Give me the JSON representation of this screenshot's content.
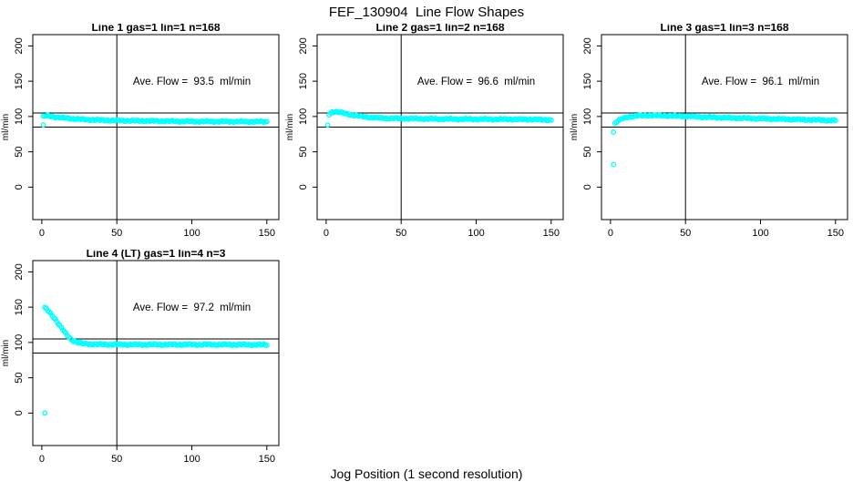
{
  "figure": {
    "title": "FEF_130904  Line Flow Shapes",
    "xlabel": "Jog Position (1 second resolution)",
    "ylabel": "ml/min",
    "background": "#FFFFFF",
    "point_color": "#00FFFF",
    "line_color": "#000000"
  },
  "axes": {
    "xlim": [
      -6,
      158
    ],
    "ylim": [
      -46,
      216
    ],
    "xticks": [
      0,
      50,
      100,
      150
    ],
    "yticks": [
      0,
      50,
      100,
      150,
      200
    ],
    "ref_line_x": 50,
    "ref_lines_y": [
      105,
      85
    ],
    "grid": false
  },
  "chart_data": [
    {
      "type": "scatter",
      "title": "Line 1 gas=1 lin=1 n=168",
      "annotation": "Ave. Flow =  93.5  ml/min",
      "ave_flow_ml_min": 93.5,
      "n": 168,
      "annotation_pos": [
        100,
        150
      ],
      "curve_anchors": [
        [
          1,
          100
        ],
        [
          2,
          100.5
        ],
        [
          4,
          101
        ],
        [
          7,
          100
        ],
        [
          12,
          98.5
        ],
        [
          20,
          97
        ],
        [
          30,
          95.5
        ],
        [
          45,
          94.5
        ],
        [
          60,
          94
        ],
        [
          80,
          93.5
        ],
        [
          100,
          93
        ],
        [
          125,
          92.8
        ],
        [
          150,
          92.5
        ]
      ],
      "outliers": [
        [
          1,
          88
        ]
      ]
    },
    {
      "type": "scatter",
      "title": "Line 2 gas=1 lin=2 n=168",
      "annotation": "Ave. Flow =  96.6  ml/min",
      "ave_flow_ml_min": 96.6,
      "n": 168,
      "annotation_pos": [
        100,
        150
      ],
      "curve_anchors": [
        [
          2,
          103
        ],
        [
          4,
          106.5
        ],
        [
          6,
          107
        ],
        [
          9,
          106
        ],
        [
          13,
          104
        ],
        [
          18,
          102
        ],
        [
          24,
          100
        ],
        [
          30,
          98.5
        ],
        [
          40,
          97.5
        ],
        [
          55,
          97
        ],
        [
          75,
          96.5
        ],
        [
          100,
          96.2
        ],
        [
          125,
          96
        ],
        [
          140,
          95.8
        ],
        [
          150,
          95
        ]
      ],
      "outliers": [
        [
          1,
          88
        ]
      ]
    },
    {
      "type": "scatter",
      "title": "Line 3 gas=1 lin=3 n=168",
      "annotation": "Ave. Flow =  96.1  ml/min",
      "ave_flow_ml_min": 96.1,
      "n": 168,
      "annotation_pos": [
        100,
        150
      ],
      "curve_anchors": [
        [
          3,
          90
        ],
        [
          5,
          94
        ],
        [
          8,
          97
        ],
        [
          12,
          99.5
        ],
        [
          18,
          101
        ],
        [
          25,
          101.5
        ],
        [
          35,
          101.2
        ],
        [
          50,
          100.3
        ],
        [
          65,
          99
        ],
        [
          80,
          98
        ],
        [
          100,
          97
        ],
        [
          120,
          96
        ],
        [
          140,
          95
        ],
        [
          150,
          94.3
        ]
      ],
      "outliers": [
        [
          2,
          78
        ],
        [
          2,
          32
        ]
      ]
    },
    {
      "type": "scatter",
      "title": "Line 4 (LT) gas=1 lin=4 n=3",
      "annotation": "Ave. Flow =  97.2  ml/min",
      "ave_flow_ml_min": 97.2,
      "n": 3,
      "annotation_pos": [
        100,
        150
      ],
      "curve_anchors": [
        [
          2,
          149
        ],
        [
          3,
          147.5
        ],
        [
          5,
          143
        ],
        [
          7,
          138
        ],
        [
          9,
          133
        ],
        [
          11,
          127
        ],
        [
          13,
          121
        ],
        [
          15,
          115
        ],
        [
          17,
          110
        ],
        [
          19,
          105.5
        ],
        [
          21,
          102.5
        ],
        [
          24,
          100
        ],
        [
          27,
          98.5
        ],
        [
          31,
          97.8
        ],
        [
          40,
          97.2
        ],
        [
          60,
          97
        ],
        [
          90,
          97
        ],
        [
          120,
          97
        ],
        [
          150,
          96.8
        ]
      ],
      "outliers": [
        [
          2,
          0
        ]
      ]
    }
  ]
}
